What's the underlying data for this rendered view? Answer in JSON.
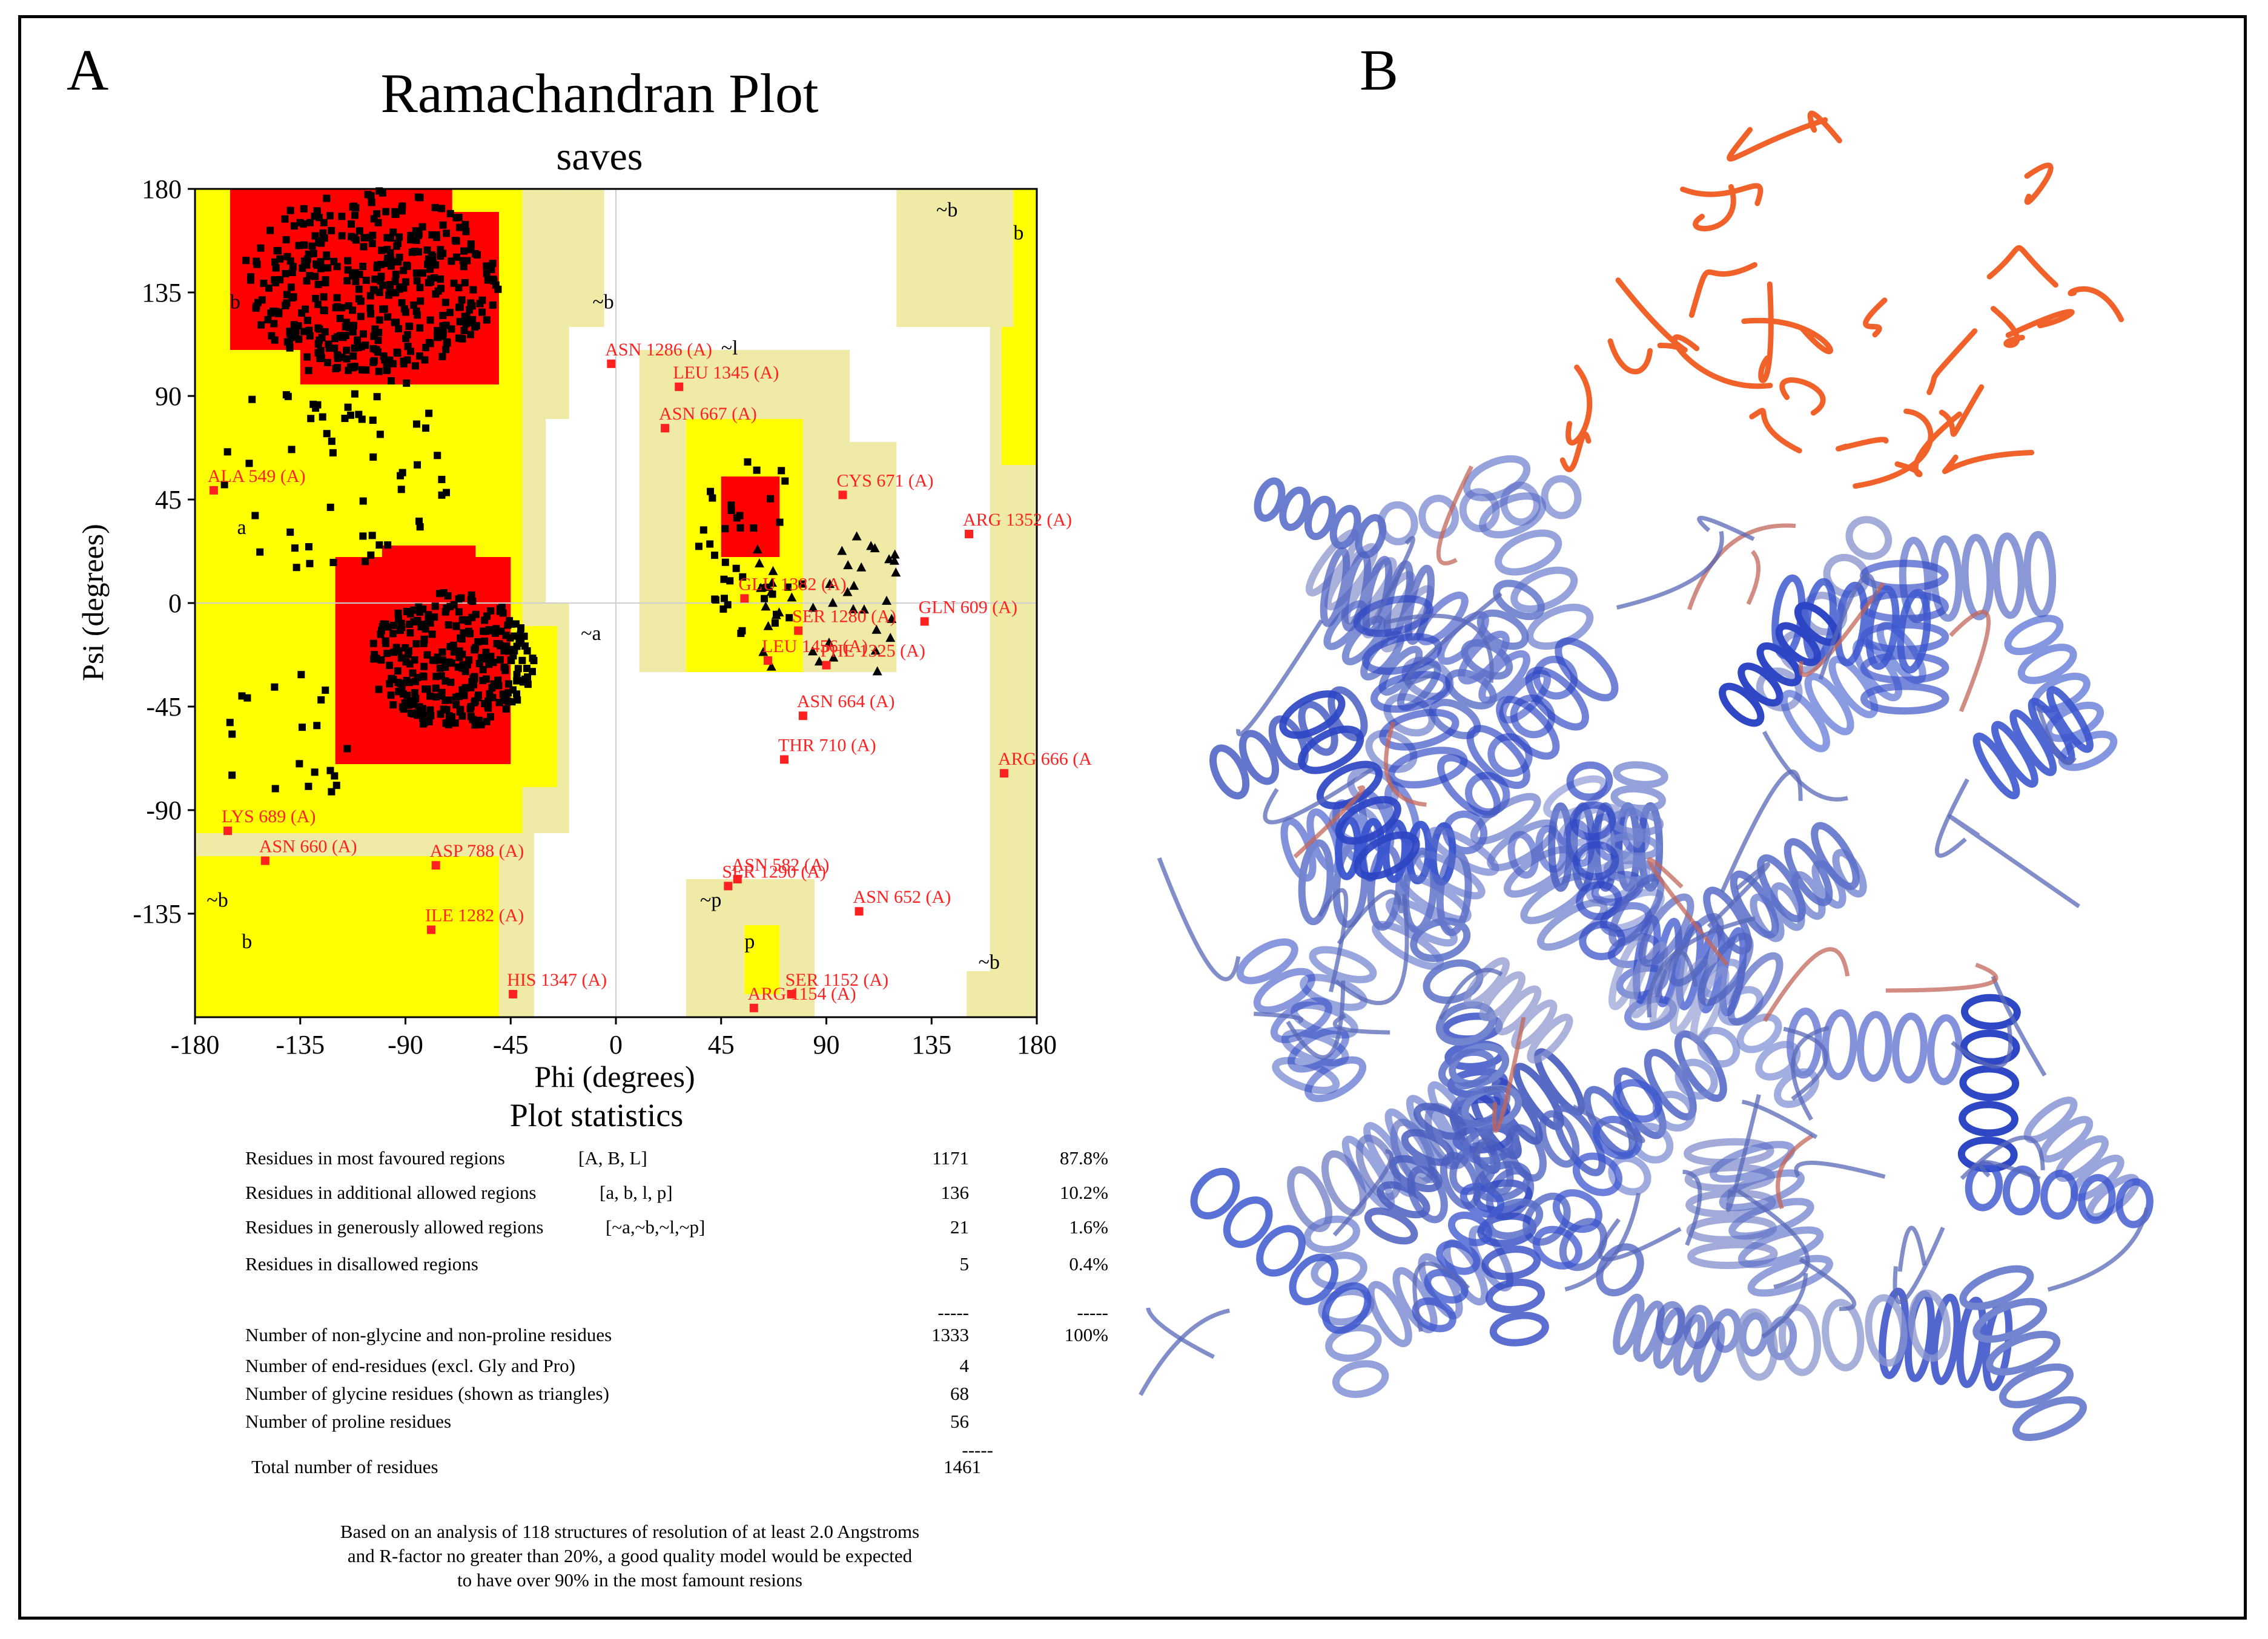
{
  "panels": {
    "a_label": "A",
    "b_label": "B"
  },
  "chart_data": {
    "type": "scatter",
    "title": "Ramachandran Plot",
    "subtitle": "saves",
    "xlabel": "Phi (degrees)",
    "ylabel": "Psi (degrees)",
    "xlim": [
      -180,
      180
    ],
    "ylim": [
      -180,
      180
    ],
    "xticks": [
      -180,
      -135,
      -90,
      -45,
      0,
      45,
      90,
      135,
      180
    ],
    "yticks": [
      -135,
      -90,
      -45,
      0,
      45,
      90,
      135,
      180
    ],
    "grid": false,
    "region_labels": [
      {
        "text": "b",
        "phi": -165,
        "psi": 128
      },
      {
        "text": "~b",
        "phi": -10,
        "psi": 128
      },
      {
        "text": "~l",
        "phi": 45,
        "psi": 108
      },
      {
        "text": "a",
        "phi": -162,
        "psi": 30
      },
      {
        "text": "~a",
        "phi": -15,
        "psi": -16
      },
      {
        "text": "~b",
        "phi": 137,
        "psi": 168
      },
      {
        "text": "b",
        "phi": 170,
        "psi": 158
      },
      {
        "text": "~b",
        "phi": -175,
        "psi": -132
      },
      {
        "text": "b",
        "phi": -160,
        "psi": -150
      },
      {
        "text": "~p",
        "phi": 36,
        "psi": -132
      },
      {
        "text": "p",
        "phi": 55,
        "psi": -150
      },
      {
        "text": "~b",
        "phi": 155,
        "psi": -159
      }
    ],
    "labelled_residues": [
      {
        "label": "ASN 1286 (A)",
        "phi": -2,
        "psi": 104
      },
      {
        "label": "LEU 1345 (A)",
        "phi": 27,
        "psi": 94
      },
      {
        "label": "ASN 667 (A)",
        "phi": 21,
        "psi": 76
      },
      {
        "label": "ALA 549 (A)",
        "phi": -172,
        "psi": 49
      },
      {
        "label": "CYS 671 (A)",
        "phi": 97,
        "psi": 47
      },
      {
        "label": "ARG 1352 (A)",
        "phi": 151,
        "psi": 30
      },
      {
        "label": "GLU 1382 (A)",
        "phi": 55,
        "psi": 2
      },
      {
        "label": "SER 1280 (A)",
        "phi": 78,
        "psi": -12
      },
      {
        "label": "GLN 609 (A)",
        "phi": 132,
        "psi": -8
      },
      {
        "label": "LEU 1456 (A)",
        "phi": 65,
        "psi": -25
      },
      {
        "label": "PHE 1325 (A)",
        "phi": 90,
        "psi": -27
      },
      {
        "label": "ASN 664 (A)",
        "phi": 80,
        "psi": -49
      },
      {
        "label": "THR 710 (A)",
        "phi": 72,
        "psi": -68
      },
      {
        "label": "ARG 666 (A",
        "phi": 166,
        "psi": -74
      },
      {
        "label": "LYS 689 (A)",
        "phi": -166,
        "psi": -99
      },
      {
        "label": "ASN 660 (A)",
        "phi": -150,
        "psi": -112
      },
      {
        "label": "ASP 788 (A)",
        "phi": -77,
        "psi": -114
      },
      {
        "label": "ASN 582 (A)",
        "phi": 52,
        "psi": -120
      },
      {
        "label": "SER 1290 (A)",
        "phi": 48,
        "psi": -123
      },
      {
        "label": "ASN 652 (A)",
        "phi": 104,
        "psi": -134
      },
      {
        "label": "ILE 1282 (A)",
        "phi": -79,
        "psi": -142
      },
      {
        "label": "HIS 1347 (A)",
        "phi": -44,
        "psi": -170
      },
      {
        "label": "SER 1152 (A)",
        "phi": 75,
        "psi": -170
      },
      {
        "label": "ARG 1154 (A)",
        "phi": 59,
        "psi": -176
      }
    ]
  },
  "stats": {
    "heading": "Plot statistics",
    "rows": [
      {
        "label": "Residues in most favoured regions",
        "codes": "[A, B, L]",
        "count": "1171",
        "pct": "87.8%"
      },
      {
        "label": "Residues in additional allowed regions",
        "codes": "[a, b, l, p]",
        "count": "136",
        "pct": "10.2%"
      },
      {
        "label": "Residues in generously allowed regions",
        "codes": "[~a,~b,~l,~p]",
        "count": "21",
        "pct": "1.6%"
      },
      {
        "label": "Residues in disallowed regions",
        "codes": "",
        "count": "5",
        "pct": "0.4%"
      }
    ],
    "separator": "-----",
    "totals": [
      {
        "label": "Number of non-glycine and non-proline residues",
        "count": "1333",
        "pct": "100%"
      },
      {
        "label": "Number of end-residues (excl. Gly and Pro)",
        "count": "4",
        "pct": ""
      },
      {
        "label": "Number of glycine residues (shown as triangles)",
        "count": "68",
        "pct": ""
      },
      {
        "label": "Number of proline residues",
        "count": "56",
        "pct": ""
      }
    ],
    "total_label": "Total number of residues",
    "total_count": "1461",
    "note": [
      "Based on an analysis of 118 structures of resolution of at least 2.0 Angstroms",
      "and R-factor no greater than 20%, a good quality model would be expected",
      "to have over 90%  in the most famount resions"
    ]
  },
  "colors": {
    "core": "#ff0000",
    "allowed": "#ffff00",
    "generous": "#ffffbf",
    "generous_dark": "#efeba6",
    "label_red": "#ff2020",
    "helix_blue": "#2c45c4",
    "loop_orange": "#f0622a"
  }
}
